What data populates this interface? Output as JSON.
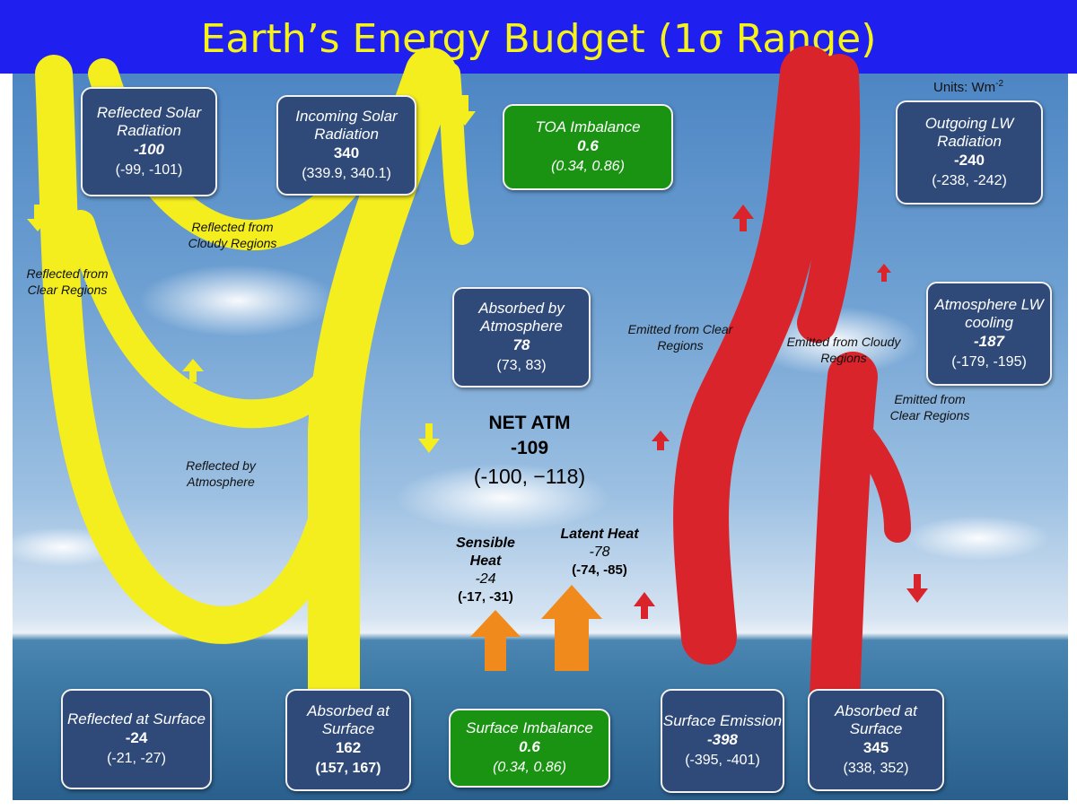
{
  "title": "Earth’s Energy Budget (1σ Range)",
  "units": {
    "label": "Units: Wm",
    "superscript": "-2"
  },
  "boxes": {
    "reflected_solar": {
      "title": "Reflected Solar Radiation",
      "value": "-100",
      "range": "(-99, -101)"
    },
    "incoming_solar": {
      "title": "Incoming Solar Radiation",
      "value": "340",
      "range": "(339.9, 340.1)"
    },
    "toa_imbalance": {
      "title": "TOA Imbalance",
      "value": "0.6",
      "range": "(0.34, 0.86)"
    },
    "outgoing_lw": {
      "title": "Outgoing LW Radiation",
      "value": "-240",
      "range": "(-238, -242)"
    },
    "absorbed_atm": {
      "title": "Absorbed by Atmosphere",
      "value": "78",
      "range": "(73, 83)"
    },
    "atm_lw_cooling": {
      "title": "Atmosphere LW cooling",
      "value": "-187",
      "range": "(-179, -195)"
    },
    "reflected_surface": {
      "title": "Reflected at Surface",
      "value": "-24",
      "range": "(-21, -27)"
    },
    "absorbed_surface_sw": {
      "title": "Absorbed at Surface",
      "value": "162",
      "range": "(157, 167)"
    },
    "surface_imbalance": {
      "title": "Surface Imbalance",
      "value": "0.6",
      "range": "(0.34, 0.86)"
    },
    "surface_emission": {
      "title": "Surface Emission",
      "value": "-398",
      "range": "(-395, -401)"
    },
    "absorbed_surface_lw": {
      "title": "Absorbed at Surface",
      "value": "345",
      "range": "(338, 352)"
    }
  },
  "labels": {
    "reflected_cloudy": "Reflected from Cloudy Regions",
    "reflected_clear": "Reflected from Clear Regions",
    "reflected_atmosphere": "Reflected by Atmosphere",
    "emitted_clear_left": "Emitted from Clear Regions",
    "emitted_cloudy": "Emitted from Cloudy Regions",
    "emitted_clear_right": "Emitted from Clear Regions"
  },
  "net_atm": {
    "label": "NET ATM",
    "value": "-109",
    "range": "(-100, −118)"
  },
  "sensible_heat": {
    "title": "Sensible Heat",
    "value": "-24",
    "range": "(-17, -31)"
  },
  "latent_heat": {
    "title": "Latent Heat",
    "value": "-78",
    "range": "(-74, -85)"
  },
  "colors": {
    "title_bg": "#1f1ff0",
    "title_text": "#f6f31b",
    "box_navy": "#2f4a78",
    "box_green": "#1a9312",
    "shortwave": "#f5ee1f",
    "longwave": "#d8242a",
    "heat": "#f08a1c"
  }
}
